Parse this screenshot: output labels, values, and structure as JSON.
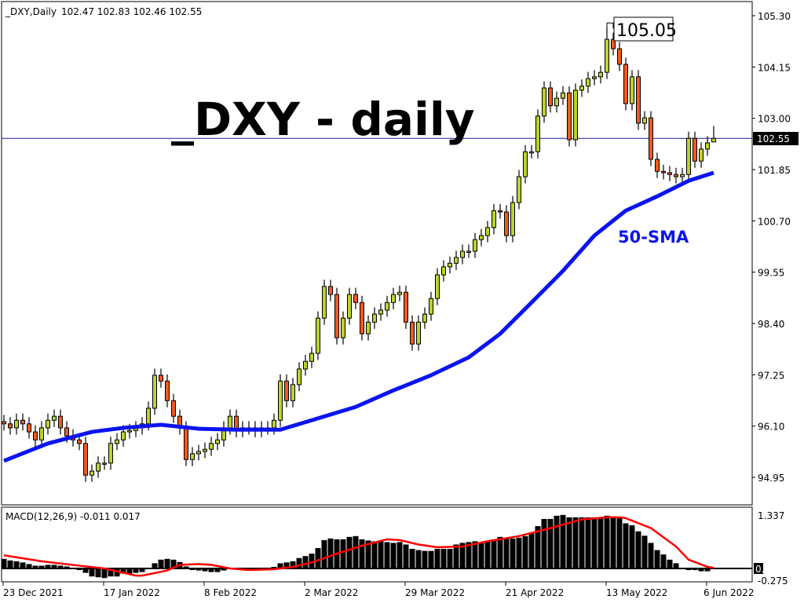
{
  "header": {
    "symbol_label": "_DXY,Daily",
    "ohlc_text": "102.47 102.83 102.46 102.55"
  },
  "overlay": {
    "title": "_DXY - daily",
    "sma_label": "50-SMA",
    "high_label": "105.05"
  },
  "macd_header": "MACD(12,26,9) -0.011 0.017",
  "colors": {
    "bull": "#bfd22b",
    "bear": "#f2591f",
    "sma": "#0a14f0",
    "signal": "#ff0000",
    "histogram": "#000000",
    "price_line": "#1a1ab0"
  },
  "chart_data": [
    {
      "type": "candlestick",
      "title": "_DXY - daily",
      "current_price": 102.55,
      "last_bar": {
        "open": 102.47,
        "high": 102.83,
        "low": 102.46,
        "close": 102.55
      },
      "ylim": [
        94.95,
        105.3
      ],
      "y_ticks": [
        "105.30",
        "104.15",
        "103.00",
        "101.85",
        "100.70",
        "99.55",
        "98.40",
        "97.25",
        "96.10",
        "94.95"
      ],
      "x_ticks": [
        {
          "bar": 0,
          "label": "23 Dec 2021"
        },
        {
          "bar": 16,
          "label": "17 Jan 2022"
        },
        {
          "bar": 32,
          "label": "8 Feb 2022"
        },
        {
          "bar": 48,
          "label": "2 Mar 2022"
        },
        {
          "bar": 64,
          "label": "29 Mar 2022"
        },
        {
          "bar": 80,
          "label": "21 Apr 2022"
        },
        {
          "bar": 96,
          "label": "13 May 2022"
        },
        {
          "bar": 112,
          "label": "6 Jun 2022"
        }
      ],
      "close": [
        96.15,
        96.06,
        96.23,
        96.15,
        95.97,
        95.79,
        96.06,
        96.23,
        96.32,
        96.06,
        95.88,
        95.79,
        95.71,
        95.0,
        95.09,
        95.27,
        95.27,
        95.71,
        95.79,
        95.97,
        96.0,
        96.06,
        96.15,
        96.5,
        97.24,
        97.11,
        96.67,
        96.32,
        96.06,
        95.35,
        95.48,
        95.53,
        95.58,
        95.71,
        95.79,
        96.06,
        96.32,
        96.0,
        96.06,
        96.06,
        96.0,
        96.06,
        96.06,
        96.23,
        97.11,
        96.67,
        97.03,
        97.38,
        97.55,
        97.73,
        98.52,
        99.23,
        99.05,
        98.08,
        98.52,
        99.05,
        98.87,
        98.17,
        98.43,
        98.61,
        98.7,
        98.87,
        99.05,
        99.1,
        98.43,
        97.94,
        98.43,
        98.61,
        98.96,
        99.49,
        99.67,
        99.75,
        99.88,
        100.02,
        100.02,
        100.28,
        100.37,
        100.55,
        100.93,
        100.9,
        100.37,
        101.11,
        101.69,
        102.25,
        102.25,
        103.05,
        103.68,
        103.28,
        103.45,
        103.57,
        102.52,
        103.63,
        103.72,
        103.89,
        103.93,
        104.03,
        104.77,
        104.56,
        104.21,
        103.33,
        103.93,
        102.89,
        103.01,
        102.08,
        101.81,
        101.78,
        101.74,
        101.69,
        101.74,
        102.55,
        102.04,
        102.31,
        102.45,
        102.55
      ],
      "sma50": {
        "name": "50-SMA",
        "points": [
          [
            0,
            95.32
          ],
          [
            7,
            95.71
          ],
          [
            14,
            95.97
          ],
          [
            19,
            96.06
          ],
          [
            25,
            96.13
          ],
          [
            31,
            96.04
          ],
          [
            37,
            96.02
          ],
          [
            44,
            96.02
          ],
          [
            49,
            96.23
          ],
          [
            56,
            96.53
          ],
          [
            62,
            96.9
          ],
          [
            68,
            97.24
          ],
          [
            74,
            97.64
          ],
          [
            79,
            98.17
          ],
          [
            84,
            98.87
          ],
          [
            89,
            99.58
          ],
          [
            94,
            100.37
          ],
          [
            99,
            100.93
          ],
          [
            104,
            101.25
          ],
          [
            109,
            101.6
          ],
          [
            113,
            101.78
          ]
        ]
      },
      "annotation": {
        "label": "105.05",
        "bar": 96
      }
    },
    {
      "type": "bar+line",
      "title": "MACD(12,26,9) -0.011 0.017",
      "ylim": [
        -0.275,
        1.337
      ],
      "y_ticks": [
        "1.337",
        "0.00",
        "-0.275"
      ],
      "histogram": [
        0.24,
        0.2,
        0.18,
        0.15,
        0.11,
        0.07,
        0.07,
        0.09,
        0.09,
        0.07,
        0.05,
        0.02,
        -0.04,
        -0.11,
        -0.2,
        -0.22,
        -0.24,
        -0.2,
        -0.2,
        -0.13,
        -0.13,
        -0.11,
        -0.09,
        0,
        0.13,
        0.22,
        0.24,
        0.22,
        0.16,
        0.05,
        -0.04,
        -0.05,
        -0.07,
        -0.09,
        -0.09,
        -0.05,
        0,
        0,
        0,
        0,
        0,
        0,
        0.02,
        0.04,
        0.13,
        0.15,
        0.18,
        0.26,
        0.31,
        0.37,
        0.51,
        0.71,
        0.75,
        0.73,
        0.73,
        0.79,
        0.81,
        0.73,
        0.7,
        0.68,
        0.68,
        0.66,
        0.64,
        0.66,
        0.6,
        0.49,
        0.46,
        0.44,
        0.44,
        0.49,
        0.49,
        0.49,
        0.6,
        0.64,
        0.66,
        0.68,
        0.66,
        0.68,
        0.73,
        0.79,
        0.75,
        0.75,
        0.77,
        0.81,
        0.88,
        1.06,
        1.24,
        1.24,
        1.32,
        1.34,
        1.28,
        1.28,
        1.28,
        1.28,
        1.28,
        1.28,
        1.32,
        1.3,
        1.28,
        1.13,
        1.08,
        0.93,
        0.82,
        0.64,
        0.46,
        0.35,
        0.22,
        0.13,
        0,
        -0.04,
        -0.04,
        -0.07,
        -0.07,
        -0.011
      ],
      "signal": [
        [
          0,
          0.33
        ],
        [
          6,
          0.18
        ],
        [
          12,
          0.07
        ],
        [
          16,
          0
        ],
        [
          21,
          -0.18
        ],
        [
          22,
          -0.18
        ],
        [
          26,
          -0.05
        ],
        [
          28,
          0.09
        ],
        [
          31,
          0.11
        ],
        [
          33,
          0.09
        ],
        [
          36,
          0
        ],
        [
          39,
          -0.04
        ],
        [
          43,
          -0.02
        ],
        [
          46,
          0.04
        ],
        [
          49,
          0.15
        ],
        [
          53,
          0.37
        ],
        [
          57,
          0.57
        ],
        [
          61,
          0.73
        ],
        [
          63,
          0.71
        ],
        [
          66,
          0.6
        ],
        [
          69,
          0.53
        ],
        [
          73,
          0.55
        ],
        [
          77,
          0.68
        ],
        [
          82,
          0.81
        ],
        [
          87,
          1.01
        ],
        [
          92,
          1.23
        ],
        [
          96,
          1.28
        ],
        [
          98,
          1.28
        ],
        [
          99,
          1.26
        ],
        [
          103,
          1.01
        ],
        [
          107,
          0.55
        ],
        [
          109,
          0.22
        ],
        [
          112,
          0.04
        ],
        [
          113,
          0.017
        ]
      ]
    }
  ]
}
